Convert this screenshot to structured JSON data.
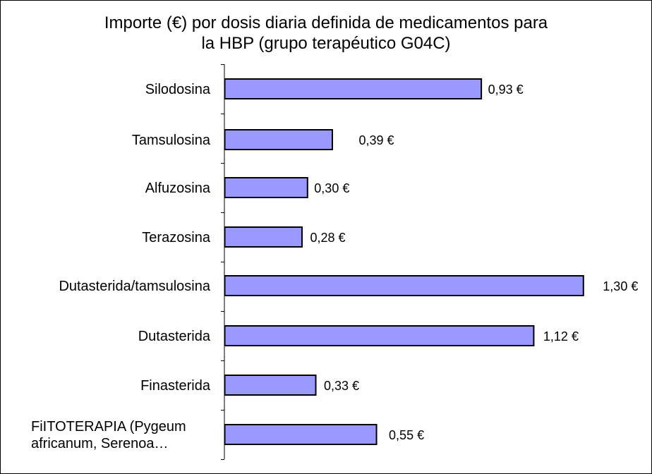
{
  "chart_data": {
    "type": "bar",
    "orientation": "horizontal",
    "title": "Importe (€) por dosis diaria definida de medicamentos para\nla HBP (grupo terapéutico G04C)",
    "categories": [
      "Silodosina",
      "Tamsulosina",
      "Alfuzosina",
      "Terazosina",
      "Dutasterida/tamsulosina",
      "Dutasterida",
      "Finasterida",
      "FiITOTERAPIA (Pygeum africanum, Serenoa…"
    ],
    "category_lines": [
      [
        "Silodosina"
      ],
      [
        "Tamsulosina"
      ],
      [
        "Alfuzosina"
      ],
      [
        "Terazosina"
      ],
      [
        "Dutasterida/tamsulosina"
      ],
      [
        "Dutasterida"
      ],
      [
        "Finasterida"
      ],
      [
        "FiITOTERAPIA (Pygeum",
        "africanum, Serenoa…"
      ]
    ],
    "values": [
      0.93,
      0.39,
      0.3,
      0.28,
      1.3,
      1.12,
      0.33,
      0.55
    ],
    "data_labels": [
      "0,93 €",
      "0,39 €",
      "0,30 €",
      "0,28 €",
      "1,30 €",
      "1,12 €",
      "0,33 €",
      "0,55 €"
    ],
    "xlim": [
      0,
      1.4
    ],
    "xlabel": "",
    "ylabel": "",
    "grid": false,
    "legend": "none",
    "bar_color": "#9999ff",
    "bar_edge_color": "#000000"
  }
}
